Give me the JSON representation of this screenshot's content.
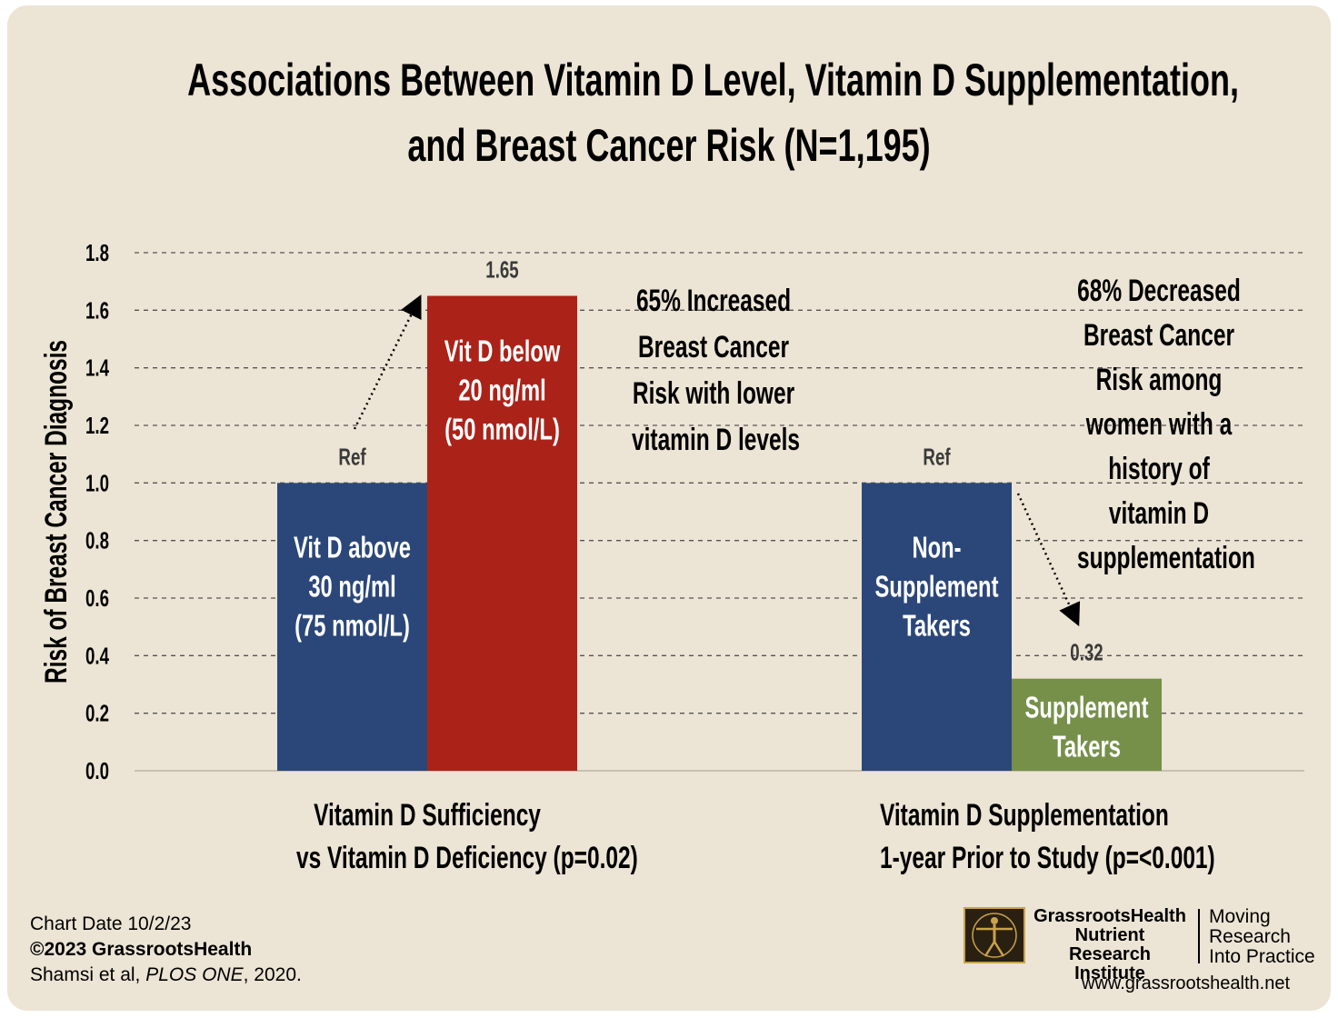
{
  "colors": {
    "background": "#ece4d4",
    "blue": "#2b4779",
    "red": "#ab2219",
    "green": "#76904a",
    "grid": "#555555",
    "text": "#000000"
  },
  "title_line1": "Associations Between Vitamin D Level, Vitamin D Supplementation,",
  "title_line2": "and Breast Cancer Risk (N=1,195)",
  "annotations": {
    "increase": [
      "65% Increased",
      "Breast Cancer",
      "Risk with lower",
      "vitamin D levels"
    ],
    "decrease": [
      "68% Decreased",
      "Breast Cancer",
      "Risk among",
      "women with a",
      "history of",
      "vitamin D",
      "supplementation"
    ]
  },
  "group_labels": [
    {
      "line1": "Vitamin D Sufficiency",
      "line2": "vs Vitamin D Deficiency (p=0.02)"
    },
    {
      "line1": "Vitamin D Supplementation",
      "line2": "1-year Prior to Study (p=<0.001)"
    }
  ],
  "footer": {
    "chart_date": "Chart Date 10/2/23",
    "copyright": "©2023 GrassrootsHealth",
    "citation_pre": "Shamsi et al, ",
    "citation_journal": "PLOS ONE",
    "citation_post": ", 2020."
  },
  "logo": {
    "org_line1": "GrassrootsHealth",
    "org_line2": "Nutrient",
    "org_line3": "Research Institute",
    "tag_line1": "Moving",
    "tag_line2": "Research",
    "tag_line3": "Into Practice",
    "url": "www.grassrootshealth.net"
  },
  "chart_data": {
    "type": "bar",
    "ylabel": "Risk of Breast Cancer Diagnosis",
    "ylim": [
      0,
      1.8
    ],
    "yticks": [
      "0.0",
      "0.2",
      "0.4",
      "0.6",
      "0.8",
      "1.0",
      "1.2",
      "1.4",
      "1.6",
      "1.8"
    ],
    "grid": true,
    "bars": [
      {
        "group": 0,
        "value": 1.0,
        "color": "blue",
        "label_lines": [
          "Vit D above",
          "30 ng/ml",
          "(75 nmol/L)"
        ],
        "value_label": "Ref"
      },
      {
        "group": 0,
        "value": 1.65,
        "color": "red",
        "label_lines": [
          "Vit D below",
          "20 ng/ml",
          "(50 nmol/L)"
        ],
        "value_label": "1.65"
      },
      {
        "group": 1,
        "value": 1.0,
        "color": "blue",
        "label_lines": [
          "Non-",
          "Supplement",
          "Takers"
        ],
        "value_label": "Ref"
      },
      {
        "group": 1,
        "value": 0.32,
        "color": "green",
        "label_lines": [
          "Supplement",
          "Takers"
        ],
        "value_label": "0.32"
      }
    ]
  }
}
